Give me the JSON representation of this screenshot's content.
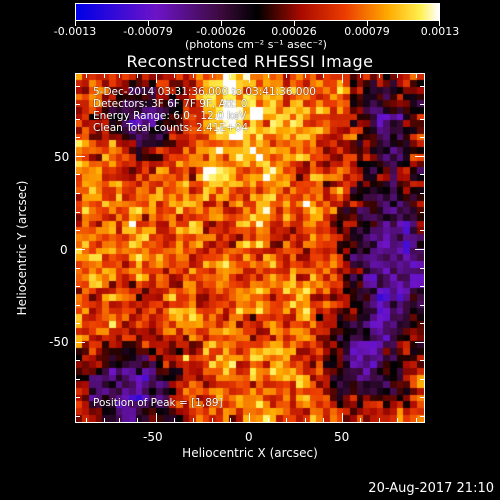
{
  "colorbar": {
    "ticks": [
      "-0.0013",
      "-0.00079",
      "-0.00026",
      "0.00026",
      "0.00079",
      "0.0013"
    ],
    "unit_label": "(photons cm⁻² s⁻¹ asec⁻²)"
  },
  "title": "Reconstructed RHESSI Image",
  "info": {
    "line1": "5-Dec-2014 03:31:36.000 to 03:41:36.000",
    "line2": "Detectors: 3F 6F 7F 9F, Att: 0",
    "line3": "Energy Range: 6.0 - 12.0 keV",
    "line4": "Clean     Total counts: 2.41E+04",
    "peak": "Position of Peak = [1,89]"
  },
  "chart_data": {
    "type": "heatmap",
    "title": "Reconstructed RHESSI Image",
    "xlabel": "Heliocentric X (arcsec)",
    "ylabel": "Heliocentric Y (arcsec)",
    "x_ticks": [
      "-50",
      "0",
      "50"
    ],
    "y_ticks": [
      "50",
      "0",
      "-50"
    ],
    "xlim": [
      -95,
      95
    ],
    "ylim": [
      -95,
      95
    ],
    "colorbar_range": [
      -0.0013,
      0.0013
    ],
    "peak_position": [
      1,
      89
    ]
  },
  "timestamp": "20-Aug-2017 21:10"
}
